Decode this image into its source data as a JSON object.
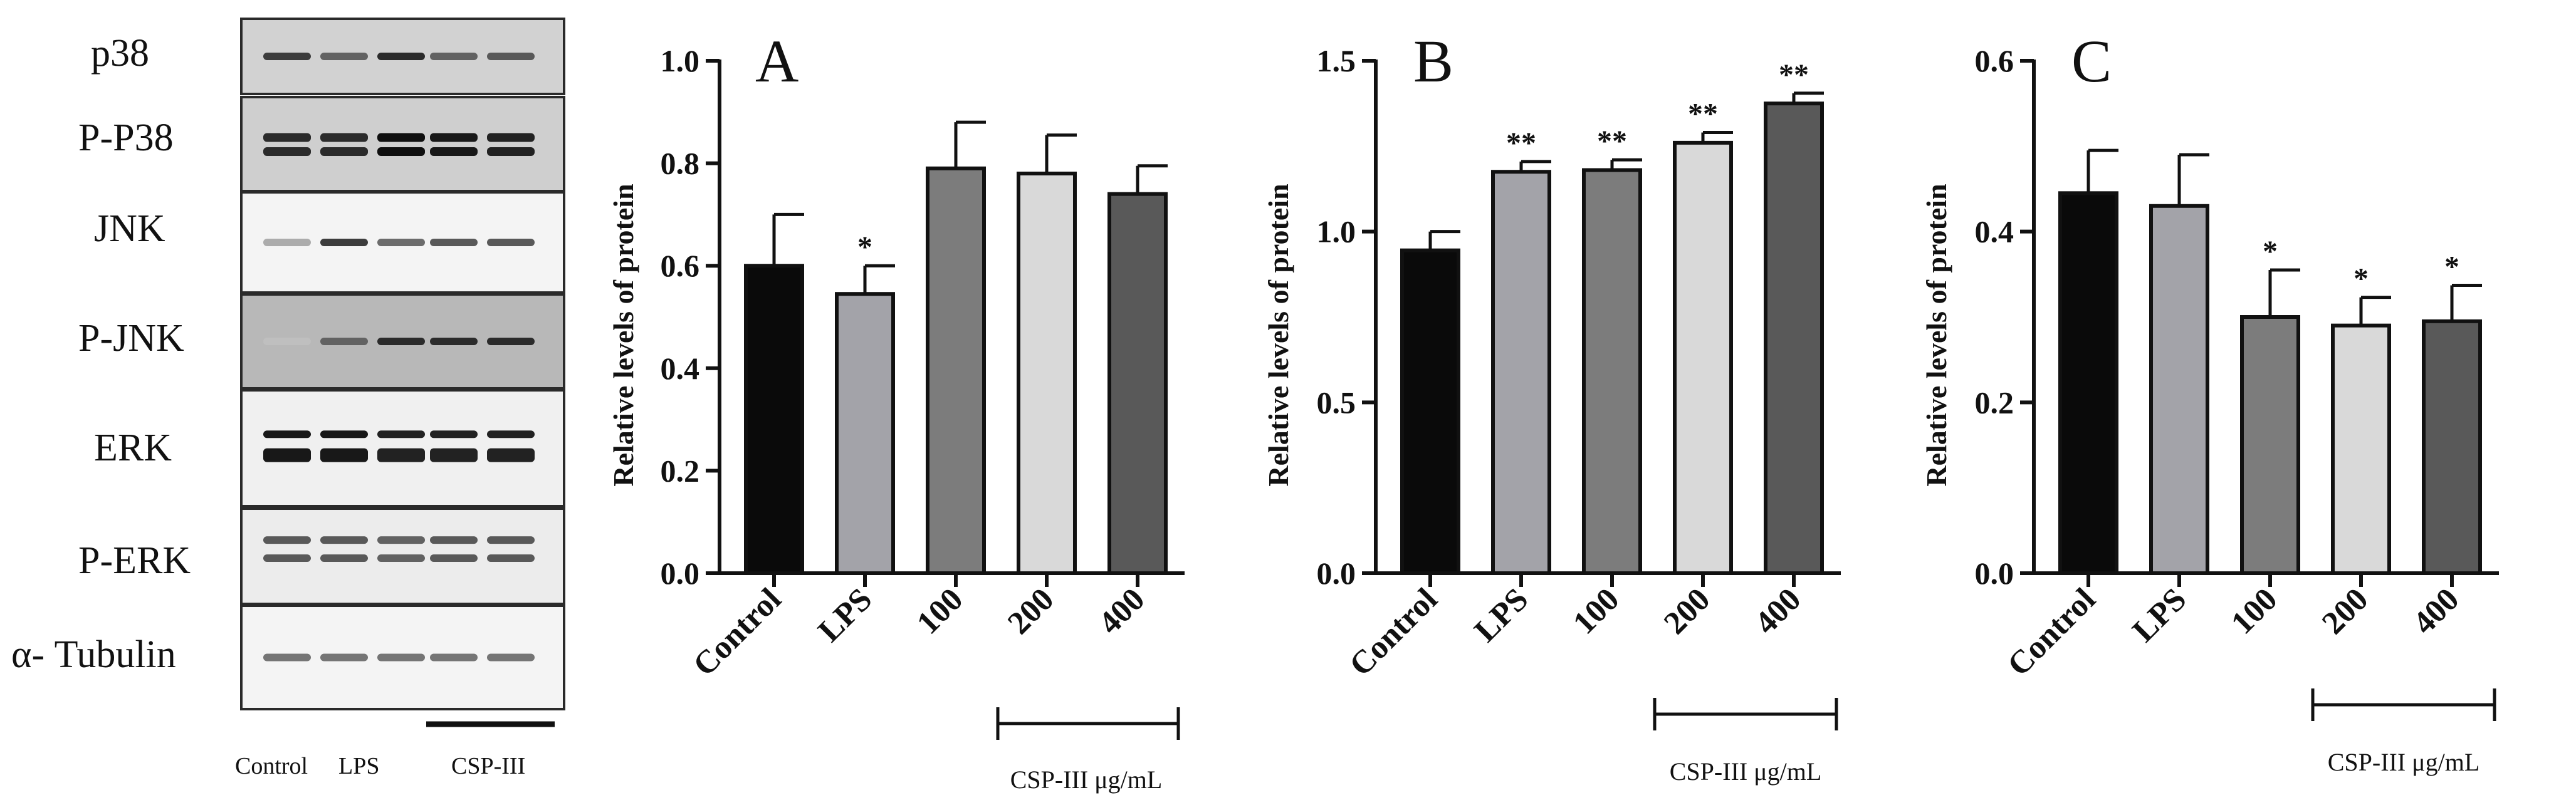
{
  "blot": {
    "rows": [
      "p38",
      "P-P38",
      "JNK",
      "P-JNK",
      "ERK",
      "P-ERK",
      "α- Tubulin"
    ],
    "lanes": [
      "Control",
      "LPS",
      "CSP-III"
    ],
    "intensities": [
      [
        0.75,
        0.55,
        0.85,
        0.55,
        0.6
      ],
      [
        0.85,
        0.85,
        1.0,
        0.95,
        0.9
      ],
      [
        0.15,
        0.75,
        0.5,
        0.6,
        0.6
      ],
      [
        0.05,
        0.55,
        0.85,
        0.85,
        0.85
      ],
      [
        0.95,
        0.95,
        0.9,
        0.9,
        0.9
      ],
      [
        0.6,
        0.6,
        0.55,
        0.6,
        0.6
      ],
      [
        0.45,
        0.45,
        0.45,
        0.45,
        0.45
      ]
    ]
  },
  "bracket_label": "CSP-III μg/mL",
  "colors": {
    "Control": "#0a0a0a",
    "LPS": "#a3a3a9",
    "100": "#7c7c7c",
    "200": "#d9d9d9",
    "400": "#595959"
  },
  "chart_data": [
    {
      "type": "bar",
      "panel": "A",
      "categories": [
        "Control",
        "LPS",
        "100",
        "200",
        "400"
      ],
      "values": [
        0.6,
        0.545,
        0.79,
        0.78,
        0.74
      ],
      "errors": [
        0.1,
        0.055,
        0.09,
        0.075,
        0.055
      ],
      "significance": [
        "",
        "*",
        "",
        "",
        ""
      ],
      "ylabel": "Relative levels of protein",
      "ylim": [
        0,
        1.0
      ],
      "yticks": [
        "0.0",
        "0.2",
        "0.4",
        "0.6",
        "0.8",
        "1.0"
      ],
      "group_label": "CSP-III μg/mL"
    },
    {
      "type": "bar",
      "panel": "B",
      "categories": [
        "Control",
        "LPS",
        "100",
        "200",
        "400"
      ],
      "values": [
        0.945,
        1.175,
        1.18,
        1.26,
        1.375
      ],
      "errors": [
        0.055,
        0.03,
        0.03,
        0.03,
        0.03
      ],
      "significance": [
        "",
        "**",
        "**",
        "**",
        "**"
      ],
      "ylabel": "Relative levels of protein",
      "ylim": [
        0,
        1.5
      ],
      "yticks": [
        "0.0",
        "0.5",
        "1.0",
        "1.5"
      ],
      "group_label": "CSP-III μg/mL"
    },
    {
      "type": "bar",
      "panel": "C",
      "categories": [
        "Control",
        "LPS",
        "100",
        "200",
        "400"
      ],
      "values": [
        0.445,
        0.43,
        0.3,
        0.29,
        0.295
      ],
      "errors": [
        0.05,
        0.06,
        0.055,
        0.033,
        0.042
      ],
      "significance": [
        "",
        "",
        "*",
        "*",
        "*"
      ],
      "ylabel": "Relative levels of protein",
      "ylim": [
        0,
        0.6
      ],
      "yticks": [
        "0.0",
        "0.2",
        "0.4",
        "0.6"
      ],
      "group_label": "CSP-III μg/mL"
    }
  ]
}
